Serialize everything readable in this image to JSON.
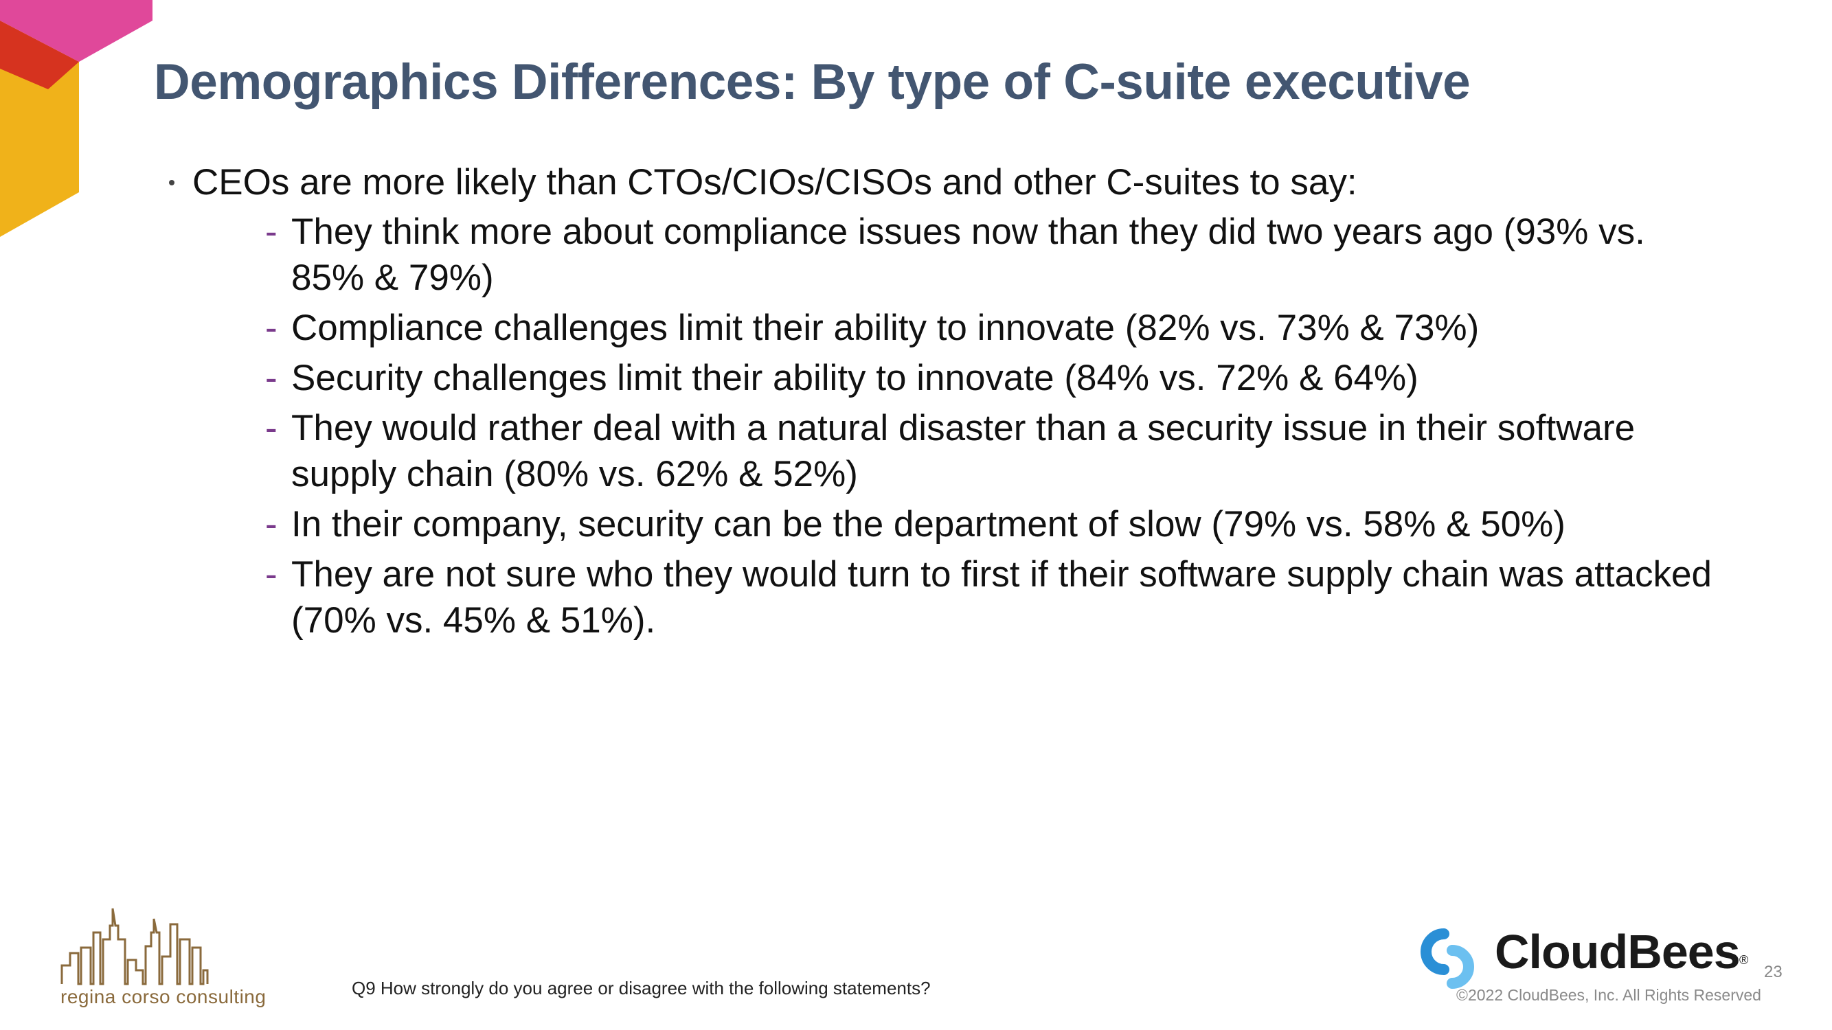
{
  "slide": {
    "title": "Demographics Differences: By type of C-suite executive",
    "main_bullet": "CEOs are more likely than CTOs/CIOs/CISOs and other C-suites to say:",
    "sub_bullets": [
      "They think more about compliance issues now than they did two years ago (93% vs. 85% & 79%)",
      "Compliance challenges limit their ability to innovate (82% vs. 73% & 73%)",
      "Security challenges limit their ability to innovate (84% vs. 72% & 64%)",
      "They would rather deal with a natural disaster than a security issue in their software supply chain (80% vs. 62% & 52%)",
      "In their company, security can be the department of slow (79% vs. 58% & 50%)",
      "They are not sure who they would turn to first if their software supply chain was attacked (70% vs. 45% & 51%)."
    ],
    "sub_bullet_marker": "-",
    "footnote": "Q9 How strongly do you agree or disagree with the following statements?",
    "page_number": "23"
  },
  "logos": {
    "left_logo_text": "regina corso consulting",
    "right_logo_text": "CloudBees",
    "right_logo_registered": "®",
    "copyright": "©2022 CloudBees, Inc. All Rights Reserved"
  },
  "colors": {
    "title": "#435671",
    "dash": "#7a3a8c",
    "corner_pink": "#e0489a",
    "corner_red": "#d6331f",
    "corner_yellow": "#f0b21a",
    "cloudbees_blue": "#2a8fd6",
    "rcc_brown": "#8a6a3c"
  }
}
